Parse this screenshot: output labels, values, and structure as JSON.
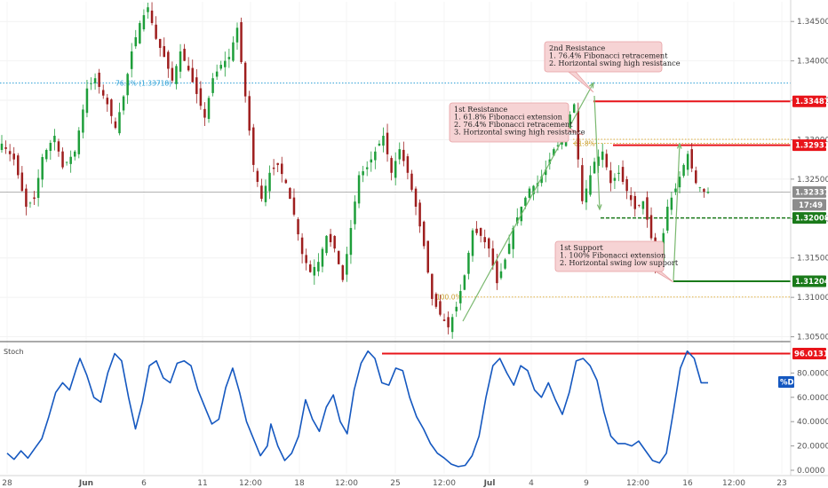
{
  "chart_data": [
    {
      "type": "candlestick",
      "symbol_pair": "",
      "y_axis": {
        "range": [
          1.3045,
          1.3475
        ],
        "ticks": [
          "1.34500",
          "1.34000",
          "1.33500",
          "1.33000",
          "1.32500",
          "1.32000",
          "1.31500",
          "1.31000",
          "1.30500"
        ],
        "tick_values": [
          1.345,
          1.34,
          1.335,
          1.33,
          1.325,
          1.32,
          1.315,
          1.31,
          1.305
        ]
      },
      "x_axis": {
        "labels": [
          "28",
          "Jun",
          "6",
          "11",
          "12:00",
          "18",
          "12:00",
          "25",
          "12:00",
          "Jul",
          "4",
          "9",
          "12:00",
          "16",
          "12:00",
          "23"
        ],
        "bold_labels": [
          "Jun",
          "Jul"
        ]
      },
      "price_path": [
        [
          0,
          1.3295
        ],
        [
          3,
          1.3275
        ],
        [
          6,
          1.3215
        ],
        [
          8,
          1.3225
        ],
        [
          10,
          1.3278
        ],
        [
          13,
          1.3305
        ],
        [
          15,
          1.3265
        ],
        [
          18,
          1.3285
        ],
        [
          21,
          1.3365
        ],
        [
          23,
          1.3378
        ],
        [
          26,
          1.3345
        ],
        [
          28,
          1.3315
        ],
        [
          30,
          1.3355
        ],
        [
          32,
          1.3412
        ],
        [
          34,
          1.3448
        ],
        [
          36,
          1.3468
        ],
        [
          38,
          1.3428
        ],
        [
          40,
          1.3405
        ],
        [
          42,
          1.3375
        ],
        [
          44,
          1.3412
        ],
        [
          46,
          1.3388
        ],
        [
          48,
          1.3358
        ],
        [
          50,
          1.3328
        ],
        [
          52,
          1.3378
        ],
        [
          54,
          1.3395
        ],
        [
          56,
          1.3405
        ],
        [
          58,
          1.3442
        ],
        [
          60,
          1.3355
        ],
        [
          62,
          1.3268
        ],
        [
          64,
          1.3225
        ],
        [
          66,
          1.3258
        ],
        [
          68,
          1.3268
        ],
        [
          70,
          1.3245
        ],
        [
          72,
          1.3205
        ],
        [
          74,
          1.3155
        ],
        [
          76,
          1.3132
        ],
        [
          78,
          1.3145
        ],
        [
          80,
          1.3178
        ],
        [
          82,
          1.3162
        ],
        [
          84,
          1.3122
        ],
        [
          86,
          1.3188
        ],
        [
          88,
          1.3255
        ],
        [
          90,
          1.3265
        ],
        [
          92,
          1.3285
        ],
        [
          94,
          1.3305
        ],
        [
          96,
          1.3258
        ],
        [
          98,
          1.3288
        ],
        [
          100,
          1.3258
        ],
        [
          102,
          1.3215
        ],
        [
          104,
          1.3165
        ],
        [
          106,
          1.3098
        ],
        [
          108,
          1.3078
        ],
        [
          110,
          1.3062
        ],
        [
          112,
          1.3088
        ],
        [
          114,
          1.3128
        ],
        [
          116,
          1.3185
        ],
        [
          118,
          1.3178
        ],
        [
          120,
          1.3162
        ],
        [
          122,
          1.3118
        ],
        [
          124,
          1.3148
        ],
        [
          126,
          1.3188
        ],
        [
          128,
          1.3215
        ],
        [
          130,
          1.3238
        ],
        [
          132,
          1.3245
        ],
        [
          134,
          1.3262
        ],
        [
          136,
          1.3288
        ],
        [
          138,
          1.3298
        ],
        [
          140,
          1.3332
        ],
        [
          141,
          1.3345
        ],
        [
          142,
          1.3275
        ],
        [
          143,
          1.3222
        ],
        [
          144,
          1.3238
        ],
        [
          146,
          1.3272
        ],
        [
          148,
          1.3285
        ],
        [
          150,
          1.3245
        ],
        [
          152,
          1.3258
        ],
        [
          154,
          1.3235
        ],
        [
          156,
          1.3212
        ],
        [
          158,
          1.3222
        ],
        [
          160,
          1.3175
        ],
        [
          161,
          1.3135
        ],
        [
          162,
          1.3148
        ],
        [
          164,
          1.3215
        ],
        [
          166,
          1.3238
        ],
        [
          168,
          1.3268
        ],
        [
          169,
          1.3282
        ],
        [
          171,
          1.3245
        ],
        [
          173,
          1.3234
        ]
      ],
      "horizontal_levels": [
        {
          "value": 1.33718,
          "style": "dotted",
          "color": "#2a9fd6",
          "label": "76.4% (1.33718)"
        },
        {
          "value": 1.33487,
          "style": "solid",
          "color": "#e8141a",
          "tag": "1.33487"
        },
        {
          "value": 1.32931,
          "style": "solid",
          "color": "#e8141a",
          "tag": "1.32931"
        },
        {
          "value": 1.33005,
          "style": "dotted",
          "color": "#e0b040",
          "label": ""
        },
        {
          "value": 1.32955,
          "style": "dotted",
          "color": "#e0b040",
          "label": "61.8%"
        },
        {
          "value": 1.32337,
          "style": "thin",
          "color": "#999999",
          "tag": "1.32337"
        },
        {
          "value": 1.32008,
          "style": "dashed",
          "color": "#1a7a1a",
          "tag": "1.32008"
        },
        {
          "value": 1.31204,
          "style": "solid",
          "color": "#1a7a1a",
          "tag": "1.31204"
        },
        {
          "value": 1.31005,
          "style": "dotted",
          "color": "#e0b040",
          "label": "100.0%"
        }
      ],
      "price_tag_time": "17:49",
      "annotations": [
        {
          "title": "2nd Resistance",
          "lines": [
            "1. 76.4% Fibonacci retracement",
            "2. Horizontal swing high resistance"
          ]
        },
        {
          "title": "1st Resistance",
          "lines": [
            "1. 61.8% Fibonacci extension",
            "2. 76.4% Fibonacci retracement",
            "3. Horizontal swing high resistance"
          ]
        },
        {
          "title": "1st Support",
          "lines": [
            "1. 100% Fibonacci extension",
            "2. Horizontal swing low support"
          ]
        }
      ]
    },
    {
      "type": "line",
      "title": "Stoch",
      "series": [
        {
          "name": "%D",
          "values": [
            [
              0,
              14
            ],
            [
              2,
              9
            ],
            [
              4,
              16
            ],
            [
              6,
              10
            ],
            [
              8,
              18
            ],
            [
              10,
              26
            ],
            [
              12,
              44
            ],
            [
              14,
              64
            ],
            [
              16,
              72
            ],
            [
              18,
              66
            ],
            [
              20,
              84
            ],
            [
              21,
              92
            ],
            [
              23,
              78
            ],
            [
              25,
              60
            ],
            [
              27,
              56
            ],
            [
              29,
              80
            ],
            [
              31,
              96
            ],
            [
              33,
              90
            ],
            [
              35,
              60
            ],
            [
              37,
              34
            ],
            [
              39,
              56
            ],
            [
              41,
              86
            ],
            [
              43,
              90
            ],
            [
              45,
              76
            ],
            [
              47,
              72
            ],
            [
              49,
              88
            ],
            [
              51,
              90
            ],
            [
              53,
              86
            ],
            [
              55,
              66
            ],
            [
              57,
              52
            ],
            [
              59,
              38
            ],
            [
              61,
              42
            ],
            [
              63,
              68
            ],
            [
              65,
              84
            ],
            [
              67,
              64
            ],
            [
              69,
              40
            ],
            [
              71,
              26
            ],
            [
              73,
              12
            ],
            [
              75,
              20
            ],
            [
              76,
              38
            ],
            [
              78,
              20
            ],
            [
              80,
              8
            ],
            [
              82,
              14
            ],
            [
              84,
              28
            ],
            [
              86,
              58
            ],
            [
              88,
              42
            ],
            [
              90,
              32
            ],
            [
              92,
              52
            ],
            [
              94,
              62
            ],
            [
              96,
              40
            ],
            [
              98,
              30
            ],
            [
              100,
              66
            ],
            [
              102,
              88
            ],
            [
              104,
              98
            ],
            [
              106,
              92
            ],
            [
              108,
              72
            ],
            [
              110,
              70
            ],
            [
              112,
              84
            ],
            [
              114,
              82
            ],
            [
              116,
              60
            ],
            [
              118,
              44
            ],
            [
              120,
              34
            ],
            [
              122,
              22
            ],
            [
              124,
              14
            ],
            [
              126,
              10
            ],
            [
              128,
              5
            ],
            [
              130,
              3
            ],
            [
              132,
              4
            ],
            [
              134,
              12
            ],
            [
              136,
              28
            ],
            [
              138,
              60
            ],
            [
              140,
              86
            ],
            [
              142,
              92
            ],
            [
              144,
              80
            ],
            [
              146,
              70
            ],
            [
              148,
              86
            ],
            [
              150,
              82
            ],
            [
              152,
              66
            ],
            [
              154,
              60
            ],
            [
              156,
              72
            ],
            [
              158,
              58
            ],
            [
              160,
              46
            ],
            [
              162,
              64
            ],
            [
              164,
              90
            ],
            [
              166,
              92
            ],
            [
              168,
              86
            ],
            [
              170,
              74
            ],
            [
              172,
              48
            ],
            [
              174,
              28
            ],
            [
              176,
              22
            ],
            [
              178,
              22
            ],
            [
              180,
              20
            ],
            [
              182,
              24
            ],
            [
              184,
              16
            ],
            [
              186,
              8
            ],
            [
              188,
              6
            ],
            [
              190,
              14
            ],
            [
              192,
              48
            ],
            [
              194,
              84
            ],
            [
              196,
              98
            ],
            [
              198,
              92
            ],
            [
              200,
              72
            ],
            [
              202,
              72
            ]
          ]
        }
      ],
      "y_axis": {
        "range": [
          0,
          100
        ],
        "ticks": [
          "80.0000",
          "60.0000",
          "40.0000",
          "20.0000",
          "0.0000"
        ],
        "tick_values": [
          80,
          60,
          40,
          20,
          0
        ]
      },
      "level": {
        "value": 96.0131,
        "tag": "96.0131",
        "color": "#e8141a"
      },
      "series_tag": "%D"
    }
  ],
  "colors": {
    "up": "#1e9e3a",
    "down": "#9e1e1e",
    "stoch_line": "#1558c0",
    "arrow": "#7ab86f",
    "note_fill": "#f6d3d4",
    "note_border": "#e7a0a3"
  }
}
